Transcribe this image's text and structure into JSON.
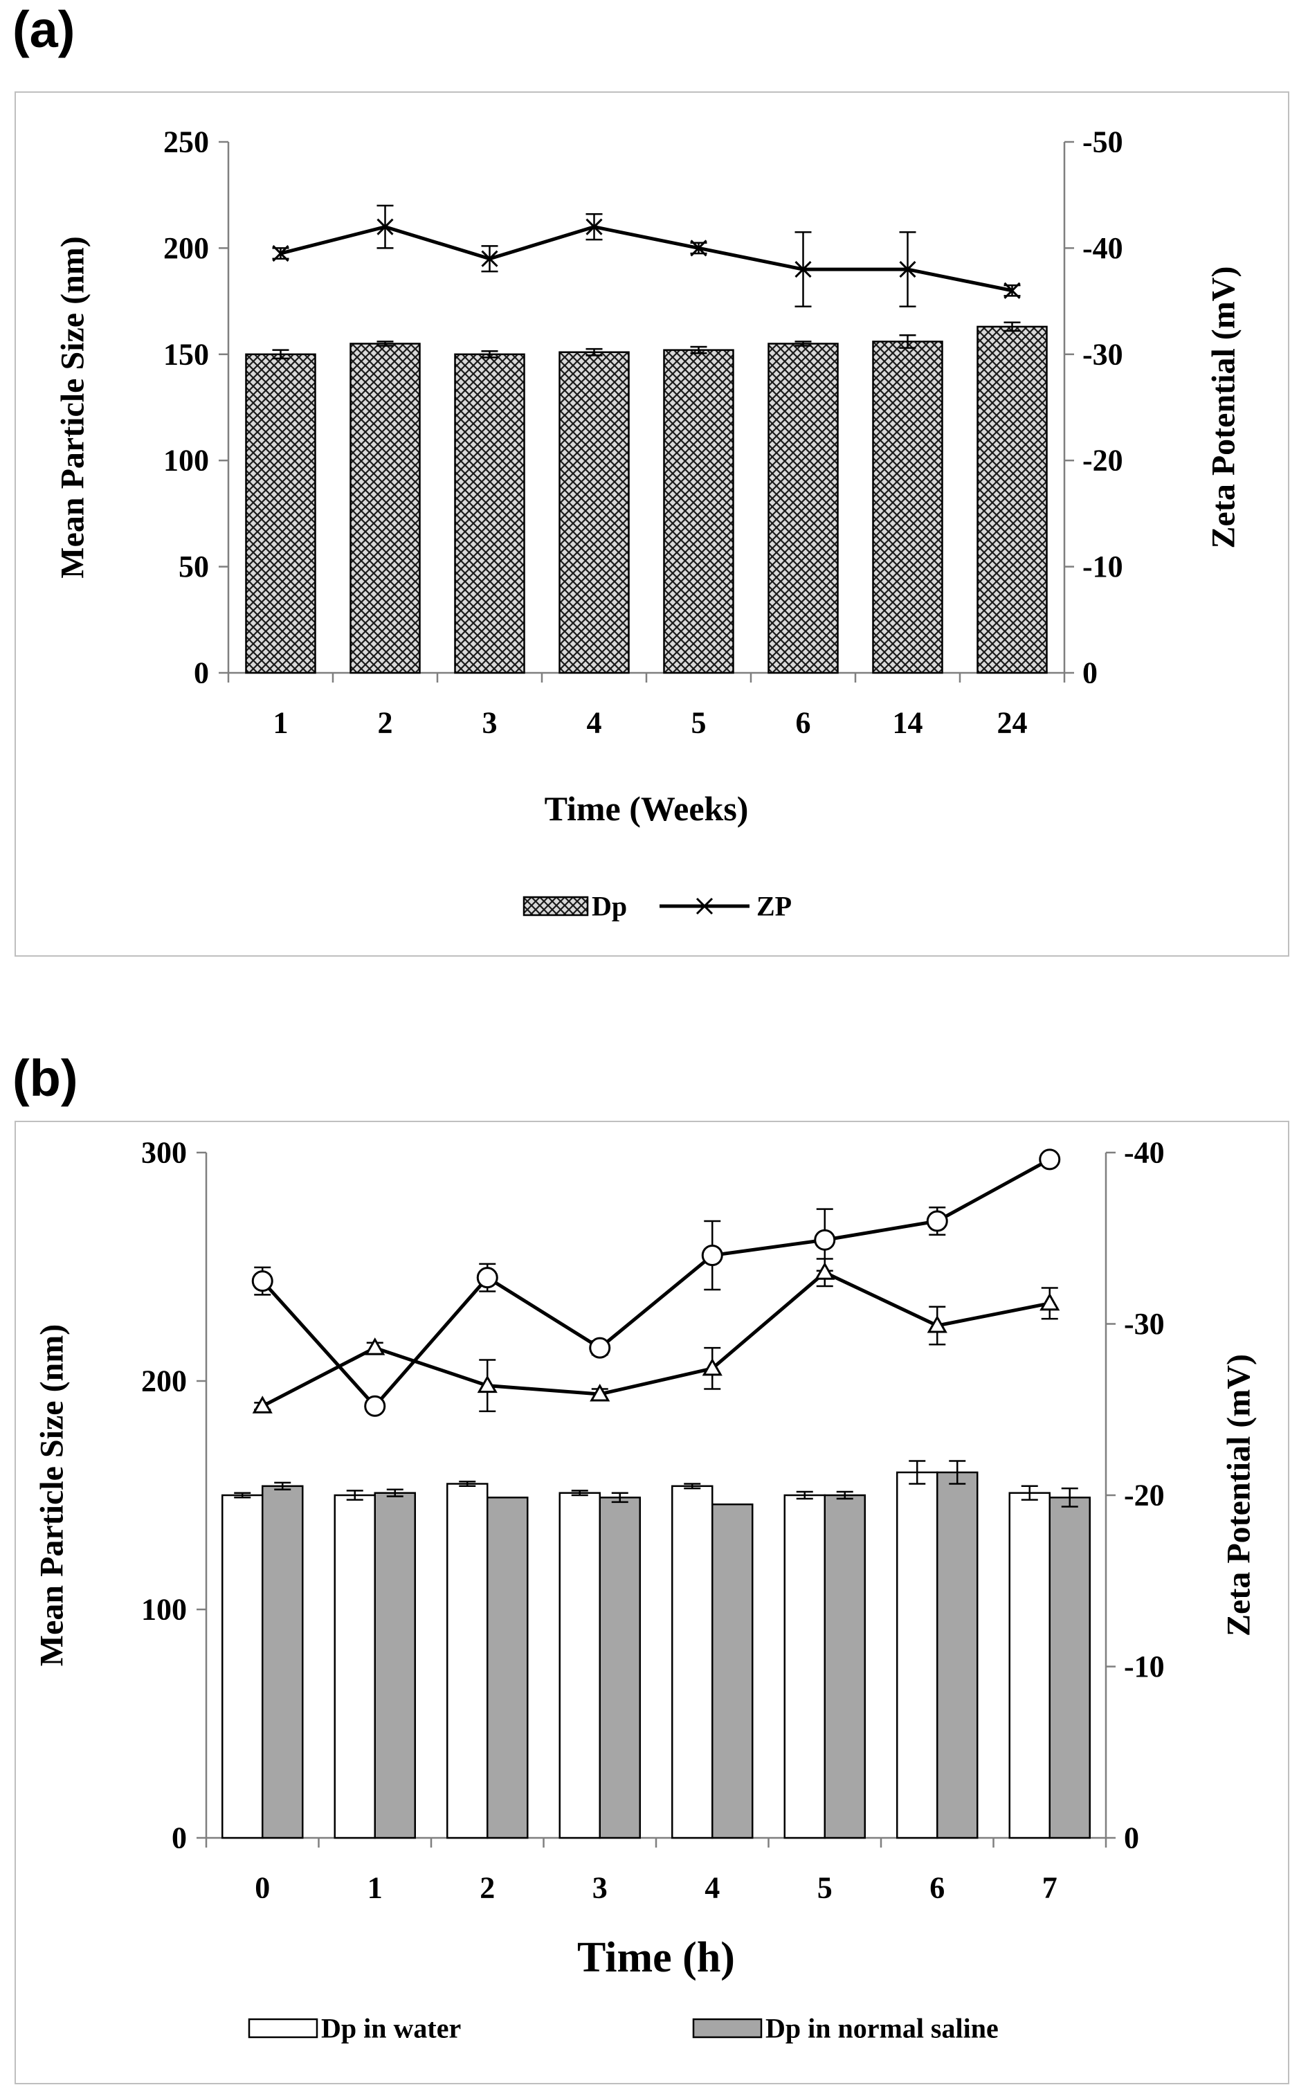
{
  "panels": [
    {
      "letter": "(a)"
    },
    {
      "letter": "(b)"
    }
  ],
  "chart_data": [
    {
      "type": "bar",
      "categories": [
        "1",
        "2",
        "3",
        "4",
        "5",
        "6",
        "14",
        "24"
      ],
      "xlabel": "Time (Weeks)",
      "ylabel": "Mean Particle Size (nm)",
      "y2label": "Zeta Potential (mV)",
      "ylim": [
        0,
        250
      ],
      "yticks": [
        0,
        50,
        100,
        150,
        200,
        250
      ],
      "y2lim": [
        0,
        -50
      ],
      "y2ticks": [
        "0",
        "-10",
        "-20",
        "-30",
        "-40",
        "-50"
      ],
      "grid": false,
      "legend": "bottom",
      "series": [
        {
          "name": "Dp",
          "kind": "bar",
          "axis": "left",
          "values": [
            150,
            155,
            150,
            151,
            152,
            155,
            156,
            163
          ],
          "errors": [
            2,
            1,
            1.5,
            1.5,
            1.5,
            1,
            3,
            2
          ],
          "style": "crosshatch"
        },
        {
          "name": "ZP",
          "kind": "line",
          "axis": "right",
          "marker": "x",
          "values": [
            -39.5,
            -42,
            -39,
            -42,
            -40,
            -38,
            -38,
            -36
          ],
          "errors": [
            0.5,
            2,
            1.2,
            1.2,
            0.5,
            3.5,
            3.5,
            0.5
          ]
        }
      ]
    },
    {
      "type": "bar",
      "categories": [
        "0",
        "1",
        "2",
        "3",
        "4",
        "5",
        "6",
        "7"
      ],
      "xlabel": "Time (h)",
      "ylabel": "Mean Particle Size (nm)",
      "y2label": "Zeta Potential (mV)",
      "ylim": [
        0,
        300
      ],
      "yticks": [
        0,
        100,
        200,
        300
      ],
      "y2lim": [
        0,
        -40
      ],
      "y2ticks": [
        "0",
        "-10",
        "-20",
        "-30",
        "-40"
      ],
      "grid": false,
      "legend": "bottom",
      "series": [
        {
          "name": "Dp in water",
          "kind": "bar",
          "axis": "left",
          "color": "#ffffff",
          "values": [
            150,
            150,
            155,
            151,
            154,
            150,
            160,
            151
          ],
          "errors": [
            1,
            2,
            1,
            1,
            1,
            1.5,
            5,
            3
          ]
        },
        {
          "name": "Dp in normal saline",
          "kind": "bar",
          "axis": "left",
          "color": "#a6a6a6",
          "values": [
            154,
            151,
            149,
            149,
            146,
            150,
            160,
            149
          ],
          "errors": [
            1.5,
            1.5,
            0,
            2,
            0,
            1.5,
            5,
            4
          ]
        },
        {
          "name": "",
          "kind": "line",
          "axis": "right",
          "marker": "circle",
          "values": [
            -32.5,
            -25.2,
            -32.7,
            -28.6,
            -34,
            -34.9,
            -36,
            -39.6
          ],
          "errors": [
            0.8,
            0.3,
            0.8,
            0.4,
            2,
            1.8,
            0.8,
            0.3
          ]
        },
        {
          "name": "",
          "kind": "line",
          "axis": "right",
          "marker": "triangle",
          "values": [
            -25.2,
            -28.6,
            -26.4,
            -25.9,
            -27.4,
            -33,
            -29.9,
            -31.2
          ],
          "errors": [
            0.2,
            0.3,
            1.5,
            0.3,
            1.2,
            0.8,
            1.1,
            0.9
          ]
        }
      ]
    }
  ]
}
